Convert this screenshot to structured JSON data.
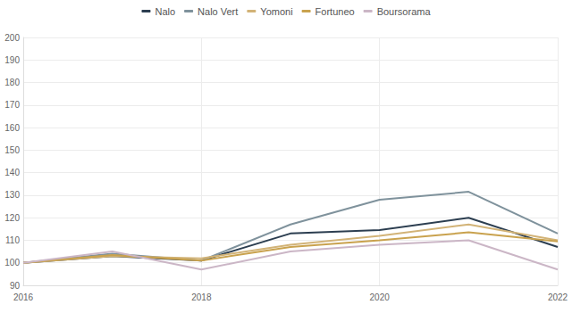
{
  "chart_data": {
    "type": "line",
    "x": [
      2016,
      2017,
      2018,
      2019,
      2020,
      2021,
      2022
    ],
    "xlim": [
      2016,
      2022
    ],
    "xticks": [
      2016,
      2018,
      2020,
      2022
    ],
    "ylim": [
      90,
      200
    ],
    "yticks": [
      90,
      100,
      110,
      120,
      130,
      140,
      150,
      160,
      170,
      180,
      190,
      200
    ],
    "grid": true,
    "legend": "top",
    "marker": "none",
    "series": [
      {
        "name": "Nalo",
        "color": "#2c3e50",
        "values": [
          100,
          103,
          101,
          113,
          114.5,
          120,
          107
        ]
      },
      {
        "name": "Nalo Vert",
        "color": "#7f929c",
        "values": [
          100,
          104,
          101,
          117,
          128,
          131.5,
          113
        ]
      },
      {
        "name": "Yomoni",
        "color": "#d2b377",
        "values": [
          100,
          103,
          102,
          108,
          112,
          117,
          110
        ]
      },
      {
        "name": "Fortuneo",
        "color": "#c9a24e",
        "values": [
          100,
          103.5,
          101,
          107,
          110,
          113.5,
          109.5
        ]
      },
      {
        "name": "Boursorama",
        "color": "#cbb6c6",
        "values": [
          100,
          105,
          97,
          105,
          108,
          110,
          97
        ]
      }
    ]
  }
}
